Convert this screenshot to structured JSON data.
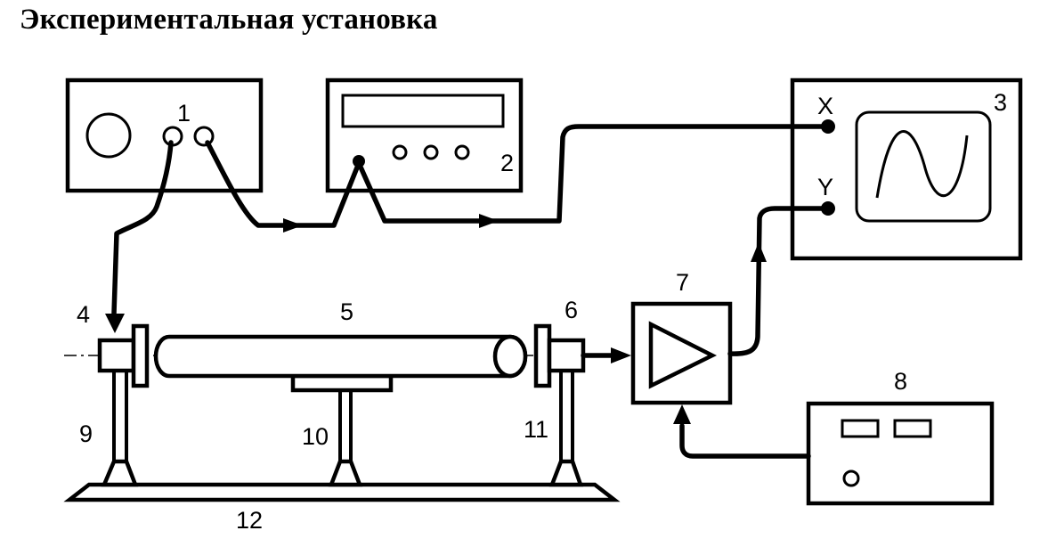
{
  "title": "Экспериментальная установка",
  "components": {
    "generator": {
      "number": "1"
    },
    "meter": {
      "number": "2"
    },
    "oscilloscope": {
      "number": "3",
      "x_label": "X",
      "y_label": "Y"
    },
    "emitter": {
      "number": "4"
    },
    "tube": {
      "number": "5"
    },
    "receiver": {
      "number": "6"
    },
    "amplifier": {
      "number": "7"
    },
    "power_supply": {
      "number": "8"
    },
    "stand_left": {
      "number": "9"
    },
    "stand_middle": {
      "number": "10"
    },
    "stand_right": {
      "number": "11"
    },
    "base": {
      "number": "12"
    }
  }
}
